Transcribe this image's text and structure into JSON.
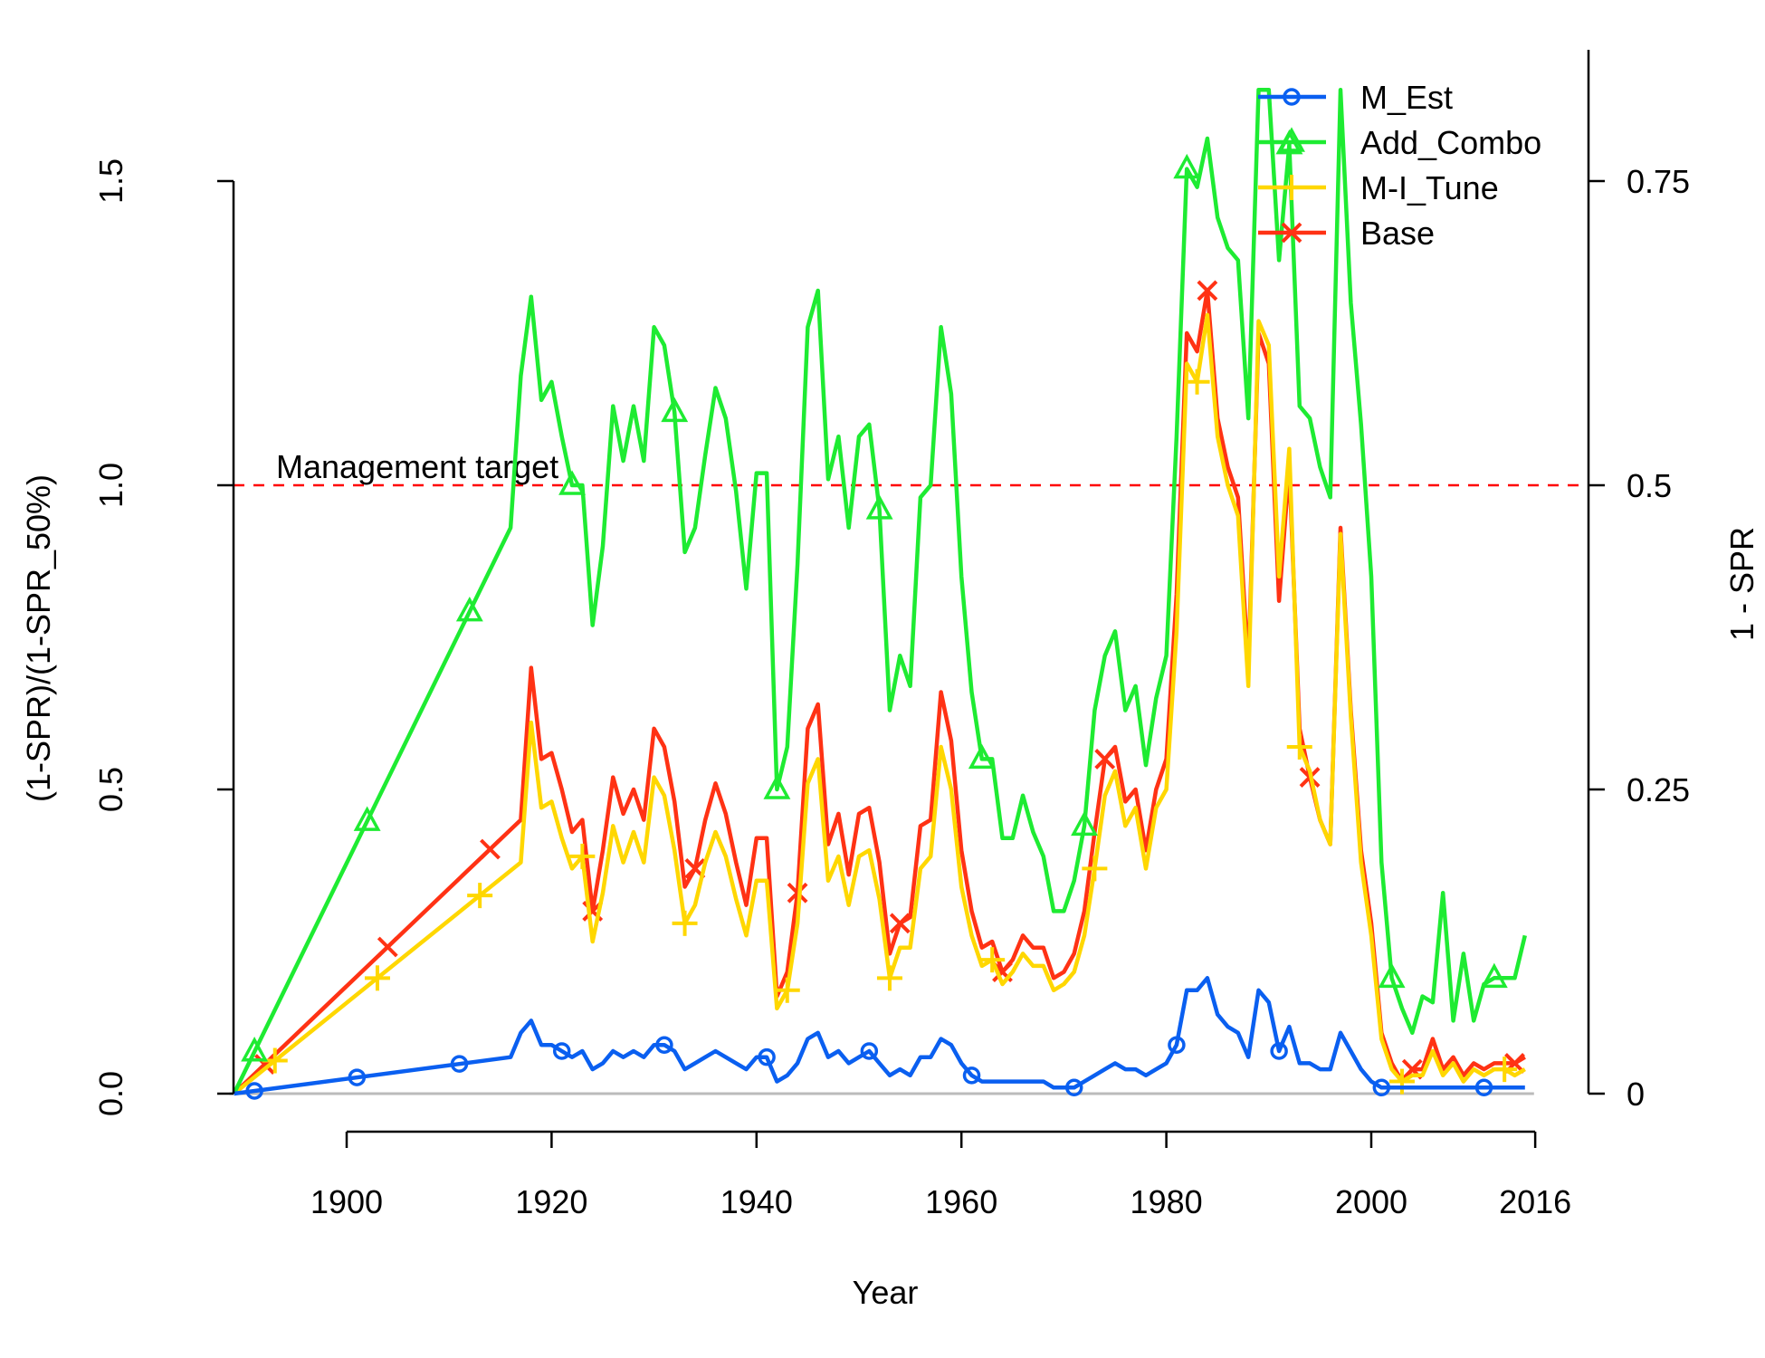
{
  "chart_data": {
    "type": "line",
    "title": "",
    "xlabel": "Year",
    "ylabel": "(1-SPR)/(1-SPR_50%)",
    "ylabel_right": "1 - SPR",
    "xlim": [
      1890,
      2016
    ],
    "ylim": [
      0,
      1.5
    ],
    "xticks": [
      "1900",
      "1920",
      "1940",
      "1960",
      "1980",
      "2000",
      "2016"
    ],
    "xtick_values": [
      1900,
      1920,
      1940,
      1960,
      1980,
      2000,
      2016
    ],
    "yticks": [
      "0.0",
      "0.5",
      "1.0",
      "1.5"
    ],
    "ytick_values": [
      0,
      0.5,
      1.0,
      1.5
    ],
    "yticks_right": [
      "0",
      "0.25",
      "0.5",
      "0.75"
    ],
    "ytick_right_values": [
      0,
      0.25,
      0.5,
      0.75
    ],
    "grid": false,
    "legend_position": "top-right",
    "reference_line": {
      "value": 1.0,
      "label": "Management target",
      "color": "#ff0000",
      "style": "dashed"
    },
    "colors": {
      "M_Est": "#0a5ff0",
      "Add_Combo": "#1eeb32",
      "M-I_Tune": "#ffd700",
      "Base": "#ff3214",
      "zero_line": "#bbbbbb"
    },
    "series": [
      {
        "name": "Base",
        "marker": "x",
        "x": [
          1889,
          1917,
          1918,
          1919,
          1920,
          1921,
          1922,
          1923,
          1924,
          1925,
          1926,
          1927,
          1928,
          1929,
          1930,
          1931,
          1932,
          1933,
          1934,
          1935,
          1936,
          1937,
          1938,
          1939,
          1940,
          1941,
          1942,
          1943,
          1944,
          1945,
          1946,
          1947,
          1948,
          1949,
          1950,
          1951,
          1952,
          1953,
          1954,
          1955,
          1956,
          1957,
          1958,
          1959,
          1960,
          1961,
          1962,
          1963,
          1964,
          1965,
          1966,
          1967,
          1968,
          1969,
          1970,
          1971,
          1972,
          1973,
          1974,
          1975,
          1976,
          1977,
          1978,
          1979,
          1980,
          1981,
          1982,
          1983,
          1984,
          1985,
          1986,
          1987,
          1988,
          1989,
          1990,
          1991,
          1992,
          1993,
          1994,
          1995,
          1996,
          1997,
          1998,
          1999,
          2000,
          2001,
          2002,
          2003,
          2004,
          2005,
          2006,
          2007,
          2008,
          2009,
          2010,
          2011,
          2012,
          2013,
          2014,
          2015
        ],
        "values": [
          0,
          0.45,
          0.7,
          0.55,
          0.56,
          0.5,
          0.43,
          0.45,
          0.3,
          0.4,
          0.52,
          0.46,
          0.5,
          0.45,
          0.6,
          0.57,
          0.48,
          0.34,
          0.37,
          0.45,
          0.51,
          0.46,
          0.38,
          0.31,
          0.42,
          0.42,
          0.16,
          0.2,
          0.33,
          0.6,
          0.64,
          0.41,
          0.46,
          0.36,
          0.46,
          0.47,
          0.38,
          0.23,
          0.28,
          0.29,
          0.44,
          0.45,
          0.66,
          0.58,
          0.4,
          0.3,
          0.24,
          0.25,
          0.2,
          0.22,
          0.26,
          0.24,
          0.24,
          0.19,
          0.2,
          0.23,
          0.3,
          0.43,
          0.55,
          0.57,
          0.48,
          0.5,
          0.4,
          0.5,
          0.55,
          0.82,
          1.25,
          1.22,
          1.32,
          1.11,
          1.03,
          0.98,
          0.7,
          1.25,
          1.2,
          0.81,
          1.03,
          0.6,
          0.52,
          0.45,
          0.41,
          0.93,
          0.63,
          0.4,
          0.28,
          0.1,
          0.05,
          0.02,
          0.04,
          0.04,
          0.09,
          0.04,
          0.06,
          0.03,
          0.05,
          0.04,
          0.05,
          0.05,
          0.05,
          0.06
        ]
      },
      {
        "name": "M-I_Tune",
        "marker": "+",
        "x": [
          1889,
          1917,
          1918,
          1919,
          1920,
          1921,
          1922,
          1923,
          1924,
          1925,
          1926,
          1927,
          1928,
          1929,
          1930,
          1931,
          1932,
          1933,
          1934,
          1935,
          1936,
          1937,
          1938,
          1939,
          1940,
          1941,
          1942,
          1943,
          1944,
          1945,
          1946,
          1947,
          1948,
          1949,
          1950,
          1951,
          1952,
          1953,
          1954,
          1955,
          1956,
          1957,
          1958,
          1959,
          1960,
          1961,
          1962,
          1963,
          1964,
          1965,
          1966,
          1967,
          1968,
          1969,
          1970,
          1971,
          1972,
          1973,
          1974,
          1975,
          1976,
          1977,
          1978,
          1979,
          1980,
          1981,
          1982,
          1983,
          1984,
          1985,
          1986,
          1987,
          1988,
          1989,
          1990,
          1991,
          1992,
          1993,
          1994,
          1995,
          1996,
          1997,
          1998,
          1999,
          2000,
          2001,
          2002,
          2003,
          2004,
          2005,
          2006,
          2007,
          2008,
          2009,
          2010,
          2011,
          2012,
          2013,
          2014,
          2015
        ],
        "values": [
          0,
          0.38,
          0.61,
          0.47,
          0.48,
          0.42,
          0.37,
          0.39,
          0.25,
          0.33,
          0.44,
          0.38,
          0.43,
          0.38,
          0.52,
          0.49,
          0.4,
          0.28,
          0.31,
          0.38,
          0.43,
          0.39,
          0.32,
          0.26,
          0.35,
          0.35,
          0.14,
          0.17,
          0.28,
          0.51,
          0.55,
          0.35,
          0.39,
          0.31,
          0.39,
          0.4,
          0.32,
          0.19,
          0.24,
          0.24,
          0.37,
          0.39,
          0.57,
          0.5,
          0.34,
          0.26,
          0.21,
          0.22,
          0.18,
          0.2,
          0.23,
          0.21,
          0.21,
          0.17,
          0.18,
          0.2,
          0.26,
          0.37,
          0.49,
          0.53,
          0.44,
          0.47,
          0.37,
          0.47,
          0.5,
          0.76,
          1.2,
          1.17,
          1.28,
          1.08,
          1.0,
          0.95,
          0.67,
          1.27,
          1.23,
          0.85,
          1.06,
          0.57,
          0.53,
          0.45,
          0.41,
          0.92,
          0.62,
          0.38,
          0.26,
          0.09,
          0.04,
          0.02,
          0.03,
          0.03,
          0.07,
          0.03,
          0.05,
          0.02,
          0.04,
          0.03,
          0.04,
          0.04,
          0.03,
          0.04
        ]
      },
      {
        "name": "Add_Combo",
        "marker": "triangle",
        "x": [
          1889,
          1916,
          1917,
          1918,
          1919,
          1920,
          1921,
          1922,
          1923,
          1924,
          1925,
          1926,
          1927,
          1928,
          1929,
          1930,
          1931,
          1932,
          1933,
          1934,
          1935,
          1936,
          1937,
          1938,
          1939,
          1940,
          1941,
          1942,
          1943,
          1944,
          1945,
          1946,
          1947,
          1948,
          1949,
          1950,
          1951,
          1952,
          1953,
          1954,
          1955,
          1956,
          1957,
          1958,
          1959,
          1960,
          1961,
          1962,
          1963,
          1964,
          1965,
          1966,
          1967,
          1968,
          1969,
          1970,
          1971,
          1972,
          1973,
          1974,
          1975,
          1976,
          1977,
          1978,
          1979,
          1980,
          1981,
          1982,
          1983,
          1984,
          1985,
          1986,
          1987,
          1988,
          1989,
          1990,
          1991,
          1992,
          1993,
          1994,
          1995,
          1996,
          1997,
          1998,
          1999,
          2000,
          2001,
          2002,
          2003,
          2004,
          2005,
          2006,
          2007,
          2008,
          2009,
          2010,
          2011,
          2012,
          2013,
          2014,
          2015
        ],
        "values": [
          0,
          0.93,
          1.18,
          1.31,
          1.14,
          1.17,
          1.08,
          1.0,
          1.0,
          0.77,
          0.9,
          1.13,
          1.04,
          1.13,
          1.04,
          1.26,
          1.23,
          1.12,
          0.89,
          0.93,
          1.05,
          1.16,
          1.11,
          0.99,
          0.83,
          1.02,
          1.02,
          0.5,
          0.57,
          0.87,
          1.26,
          1.32,
          1.01,
          1.08,
          0.93,
          1.08,
          1.1,
          0.96,
          0.63,
          0.72,
          0.67,
          0.98,
          1.0,
          1.26,
          1.15,
          0.85,
          0.66,
          0.55,
          0.55,
          0.42,
          0.42,
          0.49,
          0.43,
          0.39,
          0.3,
          0.3,
          0.35,
          0.44,
          0.63,
          0.72,
          0.76,
          0.63,
          0.67,
          0.54,
          0.65,
          0.72,
          1.08,
          1.52,
          1.49,
          1.57,
          1.44,
          1.39,
          1.37,
          1.11,
          1.65,
          1.65,
          1.37,
          1.56,
          1.13,
          1.11,
          1.03,
          0.98,
          1.65,
          1.3,
          1.1,
          0.85,
          0.38,
          0.19,
          0.14,
          0.1,
          0.16,
          0.15,
          0.33,
          0.12,
          0.23,
          0.12,
          0.18,
          0.19,
          0.19,
          0.19,
          0.26
        ]
      },
      {
        "name": "M_Est",
        "marker": "circle",
        "x": [
          1889,
          1916,
          1917,
          1918,
          1919,
          1920,
          1921,
          1922,
          1923,
          1924,
          1925,
          1926,
          1927,
          1928,
          1929,
          1930,
          1931,
          1932,
          1933,
          1934,
          1935,
          1936,
          1937,
          1938,
          1939,
          1940,
          1941,
          1942,
          1943,
          1944,
          1945,
          1946,
          1947,
          1948,
          1949,
          1950,
          1951,
          1952,
          1953,
          1954,
          1955,
          1956,
          1957,
          1958,
          1959,
          1960,
          1961,
          1962,
          1963,
          1964,
          1965,
          1966,
          1967,
          1968,
          1969,
          1970,
          1971,
          1972,
          1973,
          1974,
          1975,
          1976,
          1977,
          1978,
          1979,
          1980,
          1981,
          1982,
          1983,
          1984,
          1985,
          1986,
          1987,
          1988,
          1989,
          1990,
          1991,
          1992,
          1993,
          1994,
          1995,
          1996,
          1997,
          1998,
          1999,
          2000,
          2001,
          2002,
          2003,
          2004,
          2005,
          2006,
          2007,
          2008,
          2009,
          2010,
          2011,
          2012,
          2013,
          2014,
          2015
        ],
        "values": [
          0,
          0.06,
          0.1,
          0.12,
          0.08,
          0.08,
          0.07,
          0.06,
          0.07,
          0.04,
          0.05,
          0.07,
          0.06,
          0.07,
          0.06,
          0.08,
          0.08,
          0.07,
          0.04,
          0.05,
          0.06,
          0.07,
          0.06,
          0.05,
          0.04,
          0.06,
          0.06,
          0.02,
          0.03,
          0.05,
          0.09,
          0.1,
          0.06,
          0.07,
          0.05,
          0.06,
          0.07,
          0.05,
          0.03,
          0.04,
          0.03,
          0.06,
          0.06,
          0.09,
          0.08,
          0.05,
          0.03,
          0.02,
          0.02,
          0.02,
          0.02,
          0.02,
          0.02,
          0.02,
          0.01,
          0.01,
          0.01,
          0.02,
          0.03,
          0.04,
          0.05,
          0.04,
          0.04,
          0.03,
          0.04,
          0.05,
          0.08,
          0.17,
          0.17,
          0.19,
          0.13,
          0.11,
          0.1,
          0.06,
          0.17,
          0.15,
          0.07,
          0.11,
          0.05,
          0.05,
          0.04,
          0.04,
          0.1,
          0.07,
          0.04,
          0.02,
          0.01,
          0.01,
          0.01,
          0.01,
          0.01,
          0.01,
          0.01,
          0.01,
          0.01,
          0.01,
          0.01,
          0.01,
          0.01,
          0.01,
          0.01
        ]
      }
    ]
  }
}
